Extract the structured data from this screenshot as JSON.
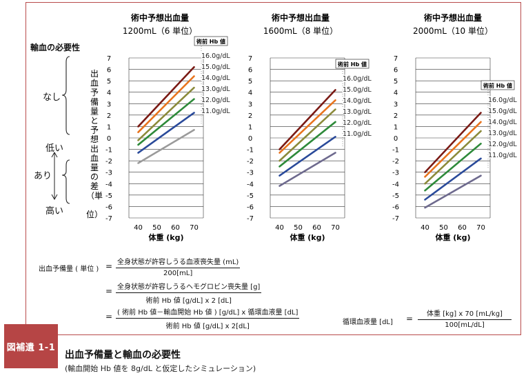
{
  "left_axis": {
    "title": "輸血の必要性",
    "none": "なし",
    "low": "低い",
    "needed": "あり",
    "high": "高い"
  },
  "y_title_chars": [
    "出",
    "血",
    "予",
    "備",
    "量",
    "と",
    "予",
    "想",
    "出",
    "血",
    "量",
    "の",
    "差",
    "（単",
    "位）"
  ],
  "chart_data": [
    {
      "type": "line",
      "title": "術中予想出血量",
      "subtitle": "1200mL（6 単位）",
      "xlabel": "体重 (kg)",
      "x": [
        40,
        70
      ],
      "xticks": [
        40,
        50,
        60,
        70
      ],
      "yticks": [
        7,
        6,
        5,
        4,
        3,
        2,
        1,
        0,
        -1,
        -2,
        -3,
        -4,
        -5,
        -6,
        -7
      ],
      "ylim": [
        -7,
        7
      ],
      "legend_title": "術前 Hb 値",
      "series": [
        {
          "name": "16.0g/dL",
          "values": [
            1.0,
            6.2
          ],
          "color": "#7a1a14"
        },
        {
          "name": "15.0g/dL",
          "values": [
            0.5,
            5.4
          ],
          "color": "#e8741e"
        },
        {
          "name": "14.0g/dL",
          "values": [
            -0.2,
            4.4
          ],
          "color": "#8b8a3a"
        },
        {
          "name": "13.0g/dL",
          "values": [
            -0.6,
            3.4
          ],
          "color": "#2e8a3a"
        },
        {
          "name": "12.0g/dL",
          "values": [
            -1.3,
            2.2
          ],
          "color": "#2a4a9a"
        },
        {
          "name": "11.0g/dL",
          "values": [
            -2.2,
            0.7
          ],
          "color": "#9a9a9a"
        }
      ]
    },
    {
      "type": "line",
      "title": "術中予想出血量",
      "subtitle": "1600mL（8 単位）",
      "xlabel": "体重 (kg)",
      "x": [
        40,
        70
      ],
      "xticks": [
        40,
        50,
        60,
        70
      ],
      "yticks": [
        7,
        6,
        5,
        4,
        3,
        2,
        1,
        0,
        -1,
        -2,
        -3,
        -4,
        -5,
        -6,
        -7
      ],
      "ylim": [
        -7,
        7
      ],
      "legend_title": "術前 Hb 値",
      "series": [
        {
          "name": "16.0g/dL",
          "values": [
            -1.0,
            4.2
          ],
          "color": "#7a1a14"
        },
        {
          "name": "15.0g/dL",
          "values": [
            -1.3,
            3.3
          ],
          "color": "#e8741e"
        },
        {
          "name": "14.0g/dL",
          "values": [
            -2.0,
            2.5
          ],
          "color": "#8b8a3a"
        },
        {
          "name": "13.0g/dL",
          "values": [
            -2.5,
            1.4
          ],
          "color": "#2e8a3a"
        },
        {
          "name": "12.0g/dL",
          "values": [
            -3.3,
            0.1
          ],
          "color": "#2a4a9a"
        },
        {
          "name": "11.0g/dL",
          "values": [
            -4.2,
            -1.3
          ],
          "color": "#6e6a8e"
        }
      ]
    },
    {
      "type": "line",
      "title": "術中予想出血量",
      "subtitle": "2000mL（10 単位）",
      "xlabel": "体重 (kg)",
      "x": [
        40,
        70
      ],
      "xticks": [
        40,
        50,
        60,
        70
      ],
      "yticks": [
        7,
        6,
        5,
        4,
        3,
        2,
        1,
        0,
        -1,
        -2,
        -3,
        -4,
        -5,
        -6,
        -7
      ],
      "ylim": [
        -7,
        7
      ],
      "legend_title": "術前 Hb 値",
      "series": [
        {
          "name": "16.0g/dL",
          "values": [
            -3.0,
            2.2
          ],
          "color": "#7a1a14"
        },
        {
          "name": "15.0g/dL",
          "values": [
            -3.4,
            1.4
          ],
          "color": "#e8741e"
        },
        {
          "name": "14.0g/dL",
          "values": [
            -4.0,
            0.6
          ],
          "color": "#8b8a3a"
        },
        {
          "name": "13.0g/dL",
          "values": [
            -4.6,
            -0.5
          ],
          "color": "#2e8a3a"
        },
        {
          "name": "12.0g/dL",
          "values": [
            -5.4,
            -1.8
          ],
          "color": "#2a4a9a"
        },
        {
          "name": "11.0g/dL",
          "values": [
            -6.1,
            -3.3
          ],
          "color": "#6e6a8e"
        }
      ]
    }
  ],
  "formula": {
    "label": "出血予備量 ( 単位 )",
    "eq": "=",
    "f1_num": "全身状態が許容しうる血液喪失量 (mL)",
    "f1_den": "200[mL]",
    "f2_num": "全身状態が許容しうるヘモグロビン喪失量 [g]",
    "f2_den": "術前 Hb 値 [g/dL]  x 2 [dL]",
    "f3_num": "( 術前 Hb 値－輸血開始 Hb 値 ) [g/dL] x 循環血液量 [dL]",
    "f3_den": "術前 Hb 値 [g/dL]  x 2[dL]",
    "circ_label": "循環血液量 [dL]",
    "circ_num": "体重 [kg]   x 70 [mL/kg]",
    "circ_den": "100[mL/dL]"
  },
  "caption": {
    "tag": "図補遺 1-1",
    "title": "出血予備量と輸血の必要性",
    "subtitle": "(輸血開始 Hb 値を 8g/dL と仮定したシミュレーション)"
  }
}
